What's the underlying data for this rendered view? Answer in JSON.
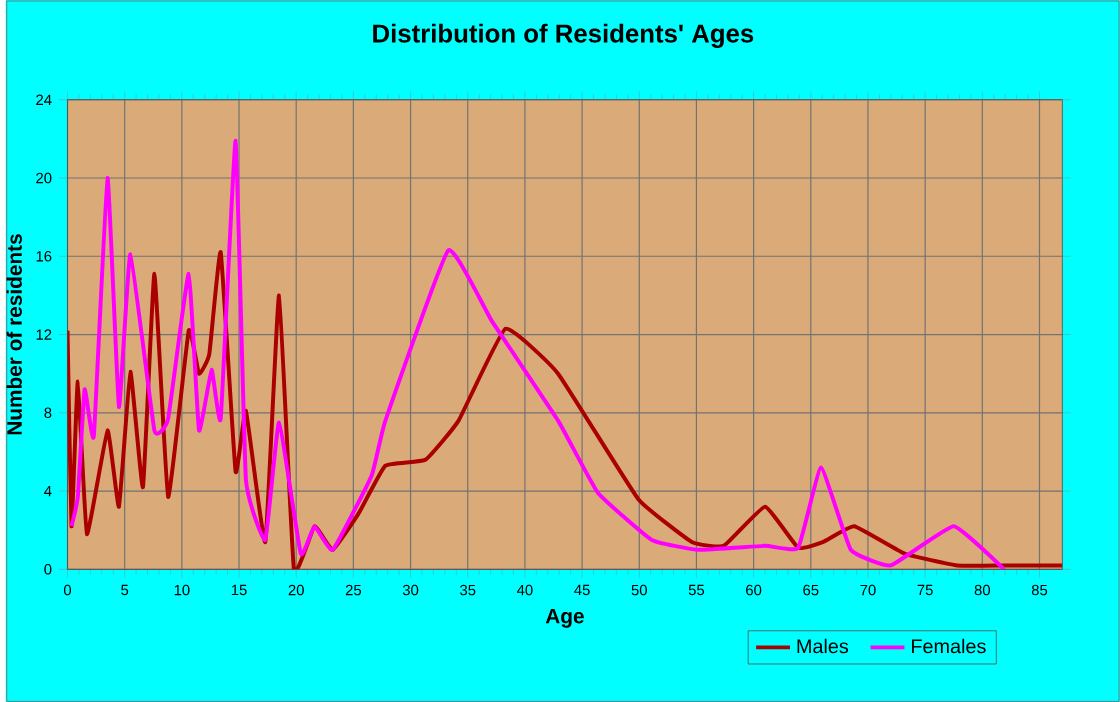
{
  "chart_data": {
    "type": "line",
    "title": "Distribution of Residents' Ages",
    "xlabel": "Age",
    "ylabel": "Number of residents",
    "xlim": [
      0,
      87
    ],
    "ylim": [
      0,
      24
    ],
    "xticks": [
      0,
      5,
      10,
      15,
      20,
      25,
      30,
      35,
      40,
      45,
      50,
      55,
      60,
      65,
      70,
      75,
      80,
      85
    ],
    "yticks": [
      0,
      4,
      8,
      12,
      16,
      20,
      24
    ],
    "grid": true,
    "legend": "bottom right",
    "marker": "none",
    "line_style": "solid",
    "series": [
      {
        "name": "Males",
        "color": "#aa0000",
        "x": [
          0,
          0.35,
          0.9,
          1.7,
          3.5,
          4.5,
          5.5,
          6.6,
          7.6,
          8.8,
          10.6,
          11.5,
          12.4,
          13.4,
          14.7,
          15.6,
          17.3,
          18.5,
          19.8,
          21.6,
          23.2,
          25.5,
          27.8,
          31.3,
          34.2,
          38.3,
          42.9,
          49.9,
          54.6,
          57.4,
          61,
          63.9,
          66.1,
          68.8,
          73.2,
          77.8,
          82,
          87
        ],
        "values": [
          12.2,
          2.2,
          9.6,
          1.8,
          7.1,
          3.2,
          10.1,
          4.2,
          15.1,
          3.7,
          12.2,
          10,
          11,
          16.2,
          5,
          8.1,
          1.4,
          14,
          0,
          2.2,
          1,
          2.9,
          5.3,
          5.6,
          7.6,
          12.3,
          10,
          3.6,
          1.4,
          1.2,
          3.2,
          1.1,
          1.4,
          2.2,
          0.8,
          0.2,
          0.2,
          0.2
        ]
      },
      {
        "name": "Females",
        "color": "#ff00ff",
        "x": [
          0.35,
          0.9,
          1.5,
          2.3,
          3.5,
          4.5,
          5.5,
          7.6,
          8.8,
          10.6,
          11.5,
          12.6,
          13.4,
          14.7,
          15.6,
          17.3,
          18.5,
          20.4,
          21.6,
          23.2,
          26.6,
          27.8,
          33.3,
          37.1,
          42.9,
          46.4,
          51.1,
          55.1,
          61,
          63.9,
          65.9,
          68.5,
          72,
          77.5,
          81.9
        ],
        "values": [
          2.2,
          3.7,
          9.2,
          6.8,
          20,
          8.3,
          16.1,
          7.1,
          7.7,
          15.1,
          7.1,
          10.2,
          7.7,
          21.9,
          4.6,
          1.5,
          7.5,
          0.8,
          2.2,
          1,
          4.8,
          7.6,
          16.3,
          12.7,
          7.6,
          3.9,
          1.5,
          1,
          1.2,
          1.1,
          5.2,
          1,
          0.2,
          2.2,
          0
        ]
      }
    ]
  }
}
